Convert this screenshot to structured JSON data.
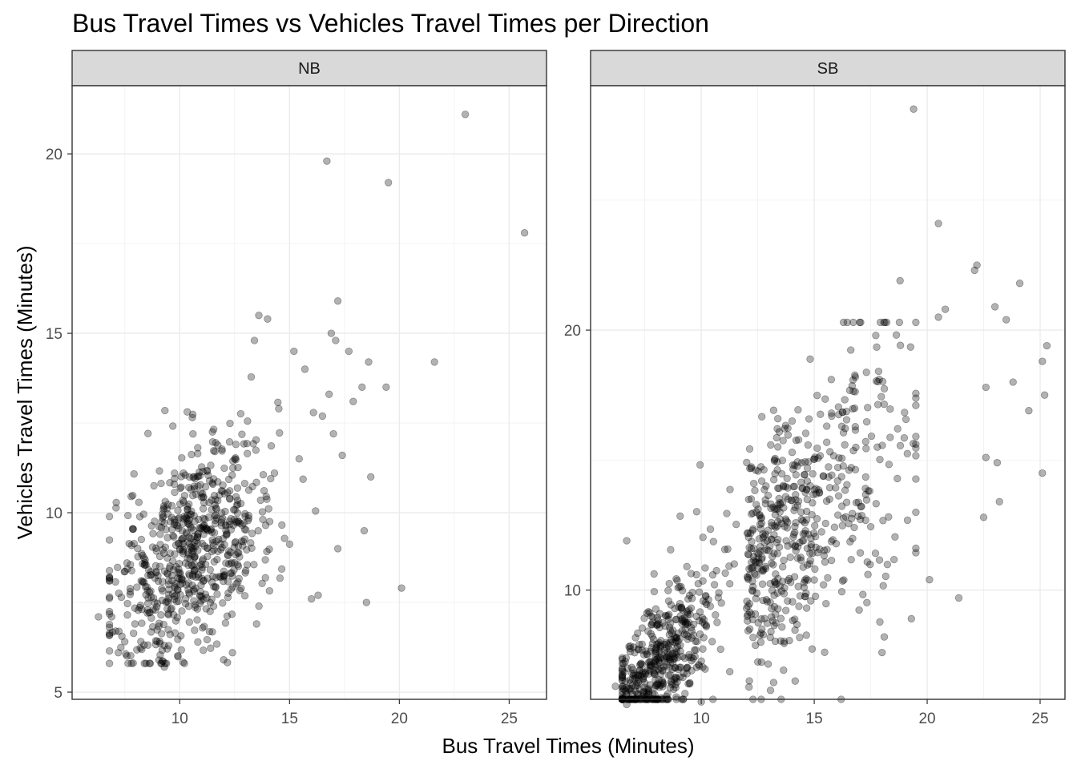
{
  "chart_data": {
    "type": "scatter",
    "title": "Bus Travel Times vs Vehicles Travel Times per Direction",
    "xlabel": "Bus Travel Times (Minutes)",
    "ylabel": "Vehicles Travel Times (Minutes)",
    "point_color": "#000000",
    "point_alpha": 0.3,
    "panel_border_color": "#333333",
    "strip_fill": "#d9d9d9",
    "grid": true,
    "facets": [
      {
        "label": "NB",
        "xlim": [
          5.1,
          26.7
        ],
        "ylim": [
          4.8,
          21.9
        ],
        "xticks": [
          10,
          15,
          20,
          25
        ],
        "yticks": [
          5,
          10,
          15,
          20
        ],
        "highlighted_points": [
          [
            23.0,
            21.1
          ],
          [
            16.7,
            19.8
          ],
          [
            19.5,
            19.2
          ],
          [
            25.7,
            17.8
          ],
          [
            17.2,
            15.9
          ],
          [
            13.6,
            15.5
          ],
          [
            14.0,
            15.4
          ],
          [
            16.9,
            15.0
          ],
          [
            17.1,
            14.8
          ],
          [
            13.4,
            14.8
          ],
          [
            17.7,
            14.5
          ],
          [
            15.2,
            14.5
          ],
          [
            21.6,
            14.2
          ],
          [
            18.6,
            14.2
          ],
          [
            15.7,
            14.0
          ],
          [
            19.4,
            13.5
          ],
          [
            18.3,
            13.5
          ],
          [
            16.8,
            13.3
          ],
          [
            17.9,
            13.1
          ],
          [
            17.0,
            12.2
          ],
          [
            18.7,
            11.0
          ],
          [
            17.4,
            11.6
          ],
          [
            17.2,
            9.0
          ],
          [
            18.4,
            9.5
          ],
          [
            20.1,
            7.9
          ],
          [
            18.5,
            7.5
          ],
          [
            16.3,
            7.7
          ],
          [
            16.0,
            7.6
          ],
          [
            12.0,
            5.9
          ],
          [
            12.4,
            6.1
          ],
          [
            9.3,
            5.7
          ],
          [
            7.2,
            6.1
          ],
          [
            6.3,
            7.1
          ],
          [
            6.9,
            7.1
          ],
          [
            7.6,
            8.6
          ],
          [
            13.5,
            6.9
          ]
        ],
        "cluster": {
          "center": [
            10.6,
            9.0
          ],
          "slope": 0.42,
          "n": 700
        }
      },
      {
        "label": "SB",
        "xlim": [
          5.1,
          26.1
        ],
        "ylim": [
          5.8,
          29.4
        ],
        "xticks": [
          10,
          15,
          20,
          25
        ],
        "yticks": [
          10,
          20
        ],
        "highlighted_points": [
          [
            19.4,
            28.5
          ],
          [
            20.5,
            24.1
          ],
          [
            22.2,
            22.5
          ],
          [
            22.1,
            22.3
          ],
          [
            24.1,
            21.8
          ],
          [
            18.8,
            21.9
          ],
          [
            20.8,
            20.8
          ],
          [
            23.0,
            20.9
          ],
          [
            23.5,
            20.4
          ],
          [
            20.5,
            20.5
          ],
          [
            25.3,
            19.4
          ],
          [
            25.1,
            18.8
          ],
          [
            23.8,
            18.0
          ],
          [
            22.6,
            17.8
          ],
          [
            25.2,
            17.5
          ],
          [
            24.5,
            16.9
          ],
          [
            22.6,
            15.1
          ],
          [
            23.1,
            14.9
          ],
          [
            25.1,
            14.5
          ],
          [
            23.2,
            13.4
          ],
          [
            22.5,
            12.8
          ],
          [
            21.4,
            9.7
          ],
          [
            19.3,
            8.9
          ],
          [
            18.0,
            7.6
          ],
          [
            6.7,
            11.9
          ],
          [
            6.7,
            5.6
          ],
          [
            7.2,
            6.0
          ],
          [
            6.2,
            6.3
          ],
          [
            8.9,
            5.8
          ],
          [
            10.0,
            5.7
          ],
          [
            20.1,
            10.4
          ],
          [
            18.1,
            8.2
          ]
        ],
        "cluster": {
          "center": [
            12.3,
            10.6
          ],
          "slope": 0.88,
          "n": 1050
        }
      }
    ]
  }
}
